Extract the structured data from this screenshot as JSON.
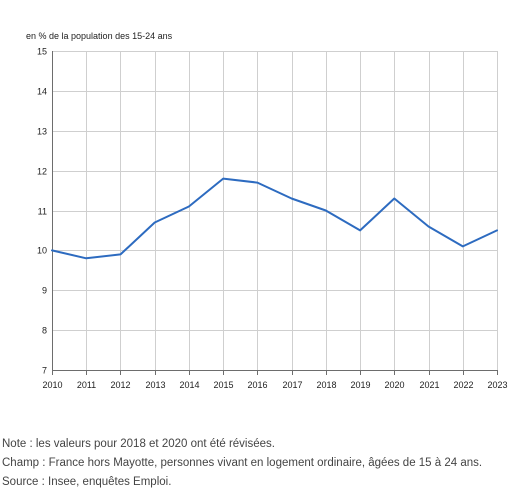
{
  "chart_data": {
    "type": "line",
    "unit_label": "en % de la population des 15-24 ans",
    "x": [
      2010,
      2011,
      2012,
      2013,
      2014,
      2015,
      2016,
      2017,
      2018,
      2019,
      2020,
      2021,
      2022,
      2023
    ],
    "series": [
      {
        "values": [
          10.0,
          9.8,
          9.9,
          10.7,
          11.1,
          11.8,
          11.7,
          11.3,
          11.0,
          10.5,
          11.3,
          10.6,
          10.1,
          10.5
        ]
      }
    ],
    "ylim": [
      7,
      15
    ],
    "yticks": [
      7,
      8,
      9,
      10,
      11,
      12,
      13,
      14,
      15
    ],
    "grid": true,
    "line_color": "#2d6bc0"
  },
  "notes": {
    "note": "Note : les valeurs pour 2018 et 2020 ont été révisées.",
    "champ": "Champ : France hors Mayotte, personnes vivant en logement ordinaire, âgées de 15 à 24 ans.",
    "source": "Source : Insee, enquêtes Emploi."
  }
}
